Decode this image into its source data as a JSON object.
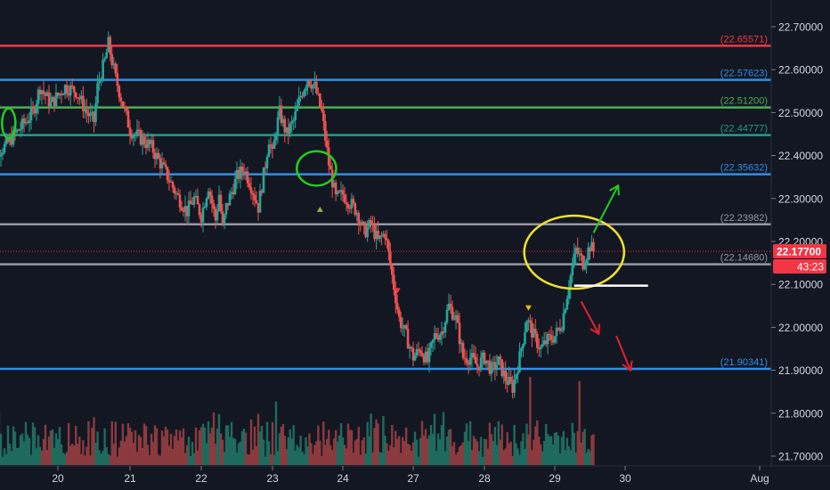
{
  "chart_data": {
    "type": "candlestick",
    "title": "",
    "ylim": [
      21.68,
      22.76
    ],
    "y_ticks": [
      "22.70000",
      "22.60000",
      "22.50000",
      "22.40000",
      "22.30000",
      "22.20000",
      "22.10000",
      "22.00000",
      "21.90000",
      "21.80000",
      "21.70000"
    ],
    "x_ticks": [
      "20",
      "21",
      "22",
      "23",
      "24",
      "27",
      "28",
      "29",
      "30",
      "Aug"
    ],
    "grid": false,
    "current_price": {
      "label": "22.17700",
      "value": 22.177,
      "countdown": "43:23",
      "color": "#f23645"
    },
    "levels": [
      {
        "label": "(22.65571)",
        "value": 22.65571,
        "color": "#f23645"
      },
      {
        "label": "(22.57623)",
        "value": 22.57623,
        "color": "#2f8fe8"
      },
      {
        "label": "(22.51200)",
        "value": 22.512,
        "color": "#4caf50"
      },
      {
        "label": "(22.44777)",
        "value": 22.44777,
        "color": "#1f9e89"
      },
      {
        "label": "(22.35632)",
        "value": 22.35632,
        "color": "#2f8fe8"
      },
      {
        "label": "(22.23982)",
        "value": 22.23982,
        "color": "#9598a1"
      },
      {
        "label": "(22.14680)",
        "value": 22.1468,
        "color": "#9598a1"
      },
      {
        "label": "(21.90341)",
        "value": 21.90341,
        "color": "#2f8fe8"
      }
    ],
    "close_path": [
      [
        0,
        22.4
      ],
      [
        5,
        22.42
      ],
      [
        9,
        22.46
      ],
      [
        13,
        22.5
      ],
      [
        15,
        22.56
      ],
      [
        18,
        22.52
      ],
      [
        22,
        22.56
      ],
      [
        25,
        22.55
      ],
      [
        28,
        22.5
      ],
      [
        30,
        22.48
      ],
      [
        31,
        22.56
      ],
      [
        33,
        22.62
      ],
      [
        34,
        22.66
      ],
      [
        36,
        22.58
      ],
      [
        38,
        22.52
      ],
      [
        40,
        22.46
      ],
      [
        43,
        22.44
      ],
      [
        46,
        22.42
      ],
      [
        50,
        22.36
      ],
      [
        53,
        22.31
      ],
      [
        56,
        22.27
      ],
      [
        58,
        22.3
      ],
      [
        60,
        22.26
      ],
      [
        62,
        22.33
      ],
      [
        64,
        22.25
      ],
      [
        65,
        22.31
      ],
      [
        66,
        22.23
      ],
      [
        67,
        22.28
      ],
      [
        70,
        22.35
      ],
      [
        72,
        22.37
      ],
      [
        74,
        22.33
      ],
      [
        76,
        22.28
      ],
      [
        78,
        22.38
      ],
      [
        79,
        22.44
      ],
      [
        80,
        22.4
      ],
      [
        81,
        22.46
      ],
      [
        82,
        22.5
      ],
      [
        84,
        22.45
      ],
      [
        86,
        22.48
      ],
      [
        88,
        22.54
      ],
      [
        90,
        22.58
      ],
      [
        92,
        22.56
      ],
      [
        94,
        22.5
      ],
      [
        96,
        22.38
      ],
      [
        98,
        22.3
      ],
      [
        100,
        22.31
      ],
      [
        102,
        22.29
      ],
      [
        104,
        22.27
      ],
      [
        106,
        22.22
      ],
      [
        108,
        22.24
      ],
      [
        110,
        22.2
      ],
      [
        112,
        22.22
      ],
      [
        114,
        22.12
      ],
      [
        116,
        22.02
      ],
      [
        118,
        21.98
      ],
      [
        120,
        21.93
      ],
      [
        122,
        21.95
      ],
      [
        124,
        21.92
      ],
      [
        126,
        21.98
      ],
      [
        128,
        21.99
      ],
      [
        130,
        22.05
      ],
      [
        132,
        22.02
      ],
      [
        134,
        21.93
      ],
      [
        136,
        21.93
      ],
      [
        138,
        21.91
      ],
      [
        140,
        21.93
      ],
      [
        142,
        21.9
      ],
      [
        144,
        21.92
      ],
      [
        146,
        21.88
      ],
      [
        148,
        21.86
      ],
      [
        150,
        21.93
      ],
      [
        152,
        22.02
      ],
      [
        154,
        21.98
      ],
      [
        156,
        21.95
      ],
      [
        158,
        21.97
      ],
      [
        160,
        21.98
      ],
      [
        162,
        22.01
      ],
      [
        164,
        22.1
      ],
      [
        166,
        22.18
      ],
      [
        168,
        22.15
      ],
      [
        170,
        22.19
      ],
      [
        171,
        22.177
      ]
    ],
    "markers": [
      {
        "type": "down",
        "day": 115.5,
        "value": 22.085,
        "color": "#f23645"
      },
      {
        "type": "down",
        "day": 152.5,
        "value": 22.045,
        "color": "#f0b90b"
      },
      {
        "type": "up",
        "day": 93.5,
        "value": 22.275,
        "color": "#8bb04a"
      }
    ],
    "annotations": [
      {
        "type": "ellipse",
        "color": "#22cc22",
        "day": 6.2,
        "value": 22.475,
        "rx": 1.9,
        "ry": 0.035
      },
      {
        "type": "ellipse",
        "color": "#22cc22",
        "day": 92.5,
        "value": 22.37,
        "rx": 5.6,
        "ry": 0.04
      },
      {
        "type": "ellipse",
        "color": "#f0e030",
        "day": 165.5,
        "value": 22.175,
        "rx": 14.2,
        "ry": 0.085
      },
      {
        "type": "hline",
        "color": "#ffffff",
        "day_from": 165.5,
        "day_to": 186.5,
        "value": 22.097
      },
      {
        "type": "arrow",
        "color": "#22cc22",
        "from_day": 171,
        "from_val": 22.22,
        "to_day": 178,
        "to_val": 22.33
      },
      {
        "type": "arrow",
        "color": "#e5212e",
        "from_day": 167.5,
        "from_val": 22.06,
        "to_day": 172.5,
        "to_val": 21.985
      },
      {
        "type": "arrow",
        "color": "#e5212e",
        "from_day": 177.5,
        "from_val": 21.98,
        "to_day": 181.5,
        "to_val": 21.9
      }
    ],
    "volume_spikes": [
      {
        "day": 81,
        "height": 0.62
      },
      {
        "day": 76,
        "height": 0.5
      },
      {
        "day": 153,
        "height": 0.86
      },
      {
        "day": 167,
        "height": 0.82
      }
    ]
  }
}
